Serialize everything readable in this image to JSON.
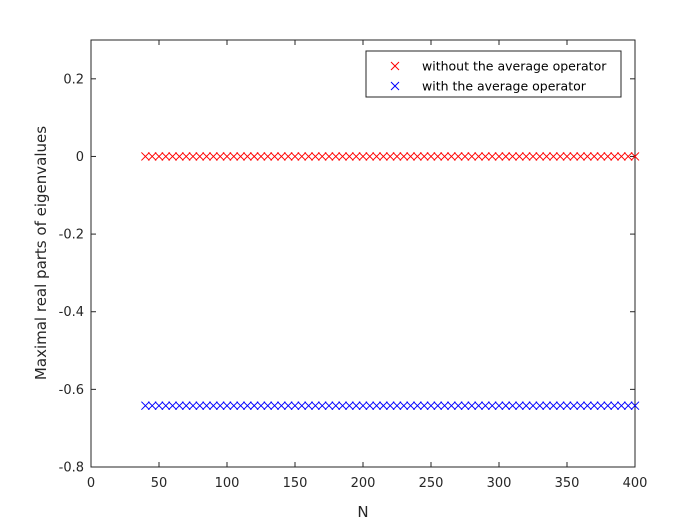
{
  "chart_data": {
    "type": "scatter",
    "title": "",
    "xlabel": "N",
    "ylabel": "Maximal real parts of eigenvalues",
    "xlim": [
      0,
      400
    ],
    "ylim": [
      -0.8,
      0.3
    ],
    "xticks": [
      0,
      50,
      100,
      150,
      200,
      250,
      300,
      350,
      400
    ],
    "xtick_labels": [
      "0",
      "50",
      "100",
      "150",
      "200",
      "250",
      "300",
      "350",
      "400"
    ],
    "yticks": [
      -0.8,
      -0.6,
      -0.4,
      -0.2,
      0,
      0.2
    ],
    "ytick_labels": [
      "-0.8",
      "-0.6",
      "-0.4",
      "-0.2",
      "0",
      "0.2"
    ],
    "grid": false,
    "legend_position": "top-right",
    "marker": "x",
    "x": [
      40,
      45,
      50,
      55,
      60,
      65,
      70,
      75,
      80,
      85,
      90,
      95,
      100,
      105,
      110,
      115,
      120,
      125,
      130,
      135,
      140,
      145,
      150,
      155,
      160,
      165,
      170,
      175,
      180,
      185,
      190,
      195,
      200,
      205,
      210,
      215,
      220,
      225,
      230,
      235,
      240,
      245,
      250,
      255,
      260,
      265,
      270,
      275,
      280,
      285,
      290,
      295,
      300,
      305,
      310,
      315,
      320,
      325,
      330,
      335,
      340,
      345,
      350,
      355,
      360,
      365,
      370,
      375,
      380,
      385,
      390,
      395,
      400
    ],
    "series": [
      {
        "name": "without the average operator",
        "color": "#ff0000",
        "values": [
          0,
          0,
          0,
          0,
          0,
          0,
          0,
          0,
          0,
          0,
          0,
          0,
          0,
          0,
          0,
          0,
          0,
          0,
          0,
          0,
          0,
          0,
          0,
          0,
          0,
          0,
          0,
          0,
          0,
          0,
          0,
          0,
          0,
          0,
          0,
          0,
          0,
          0,
          0,
          0,
          0,
          0,
          0,
          0,
          0,
          0,
          0,
          0,
          0,
          0,
          0,
          0,
          0,
          0,
          0,
          0,
          0,
          0,
          0,
          0,
          0,
          0,
          0,
          0,
          0,
          0,
          0,
          0,
          0,
          0,
          0,
          0,
          0
        ]
      },
      {
        "name": "with the average operator",
        "color": "#0000ff",
        "values": [
          -0.642,
          -0.642,
          -0.642,
          -0.642,
          -0.642,
          -0.642,
          -0.642,
          -0.642,
          -0.642,
          -0.642,
          -0.642,
          -0.642,
          -0.642,
          -0.642,
          -0.642,
          -0.642,
          -0.642,
          -0.642,
          -0.642,
          -0.642,
          -0.642,
          -0.642,
          -0.642,
          -0.642,
          -0.642,
          -0.642,
          -0.642,
          -0.642,
          -0.642,
          -0.642,
          -0.642,
          -0.642,
          -0.642,
          -0.642,
          -0.642,
          -0.642,
          -0.642,
          -0.642,
          -0.642,
          -0.642,
          -0.642,
          -0.642,
          -0.642,
          -0.642,
          -0.642,
          -0.642,
          -0.642,
          -0.642,
          -0.642,
          -0.642,
          -0.642,
          -0.642,
          -0.642,
          -0.642,
          -0.642,
          -0.642,
          -0.642,
          -0.642,
          -0.642,
          -0.642,
          -0.642,
          -0.642,
          -0.642,
          -0.642,
          -0.642,
          -0.642,
          -0.642,
          -0.642,
          -0.642,
          -0.642,
          -0.642,
          -0.642,
          -0.642
        ]
      }
    ]
  }
}
